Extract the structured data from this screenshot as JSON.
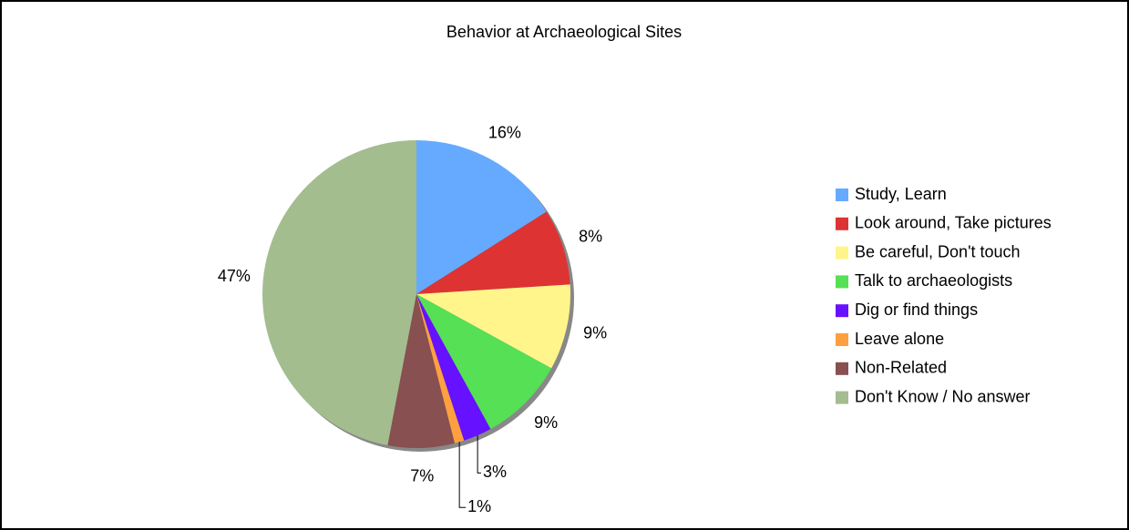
{
  "chart_data": {
    "type": "pie",
    "title": "Behavior at Archaeological Sites",
    "categories": [
      "Study, Learn",
      "Look around, Take pictures",
      "Be careful, Don't touch",
      "Talk to archaeologists",
      "Dig or find things",
      "Leave alone",
      "Non-Related",
      "Don't Know / No answer"
    ],
    "values": [
      16,
      8,
      9,
      9,
      3,
      1,
      7,
      47
    ],
    "value_labels": [
      "16%",
      "8%",
      "9%",
      "9%",
      "3%",
      "1%",
      "7%",
      "47%"
    ],
    "colors": [
      "#66aaff",
      "#dd3333",
      "#fff58a",
      "#55e055",
      "#6611ff",
      "#ffa040",
      "#885050",
      "#a3bd8f"
    ],
    "legend": "right"
  }
}
